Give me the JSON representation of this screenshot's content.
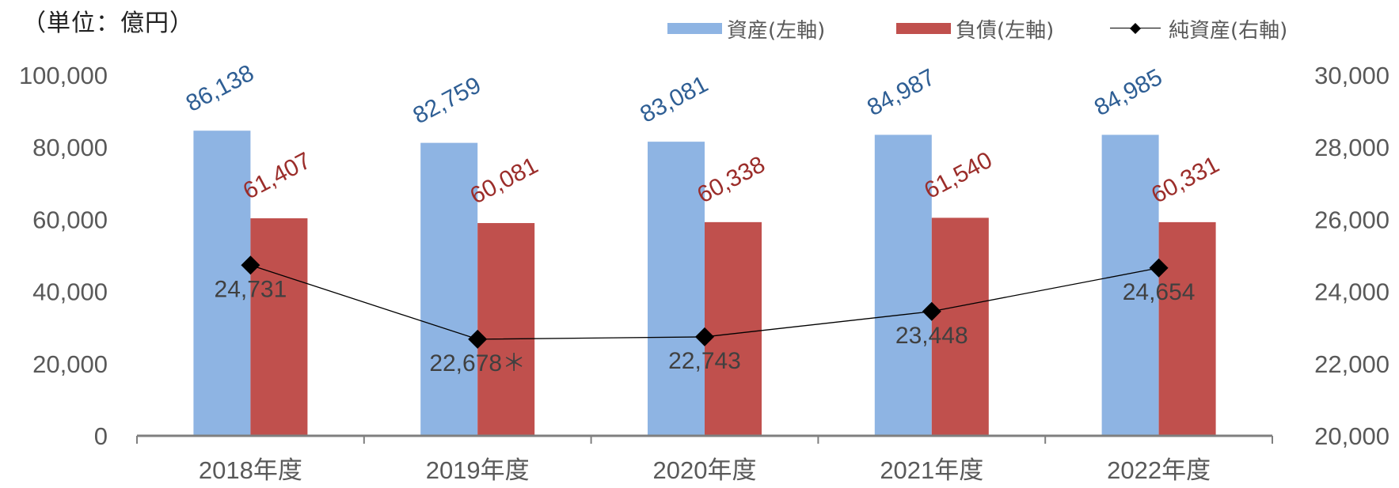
{
  "unit_label": "（単位：億円）",
  "legend": [
    {
      "label": "資産(左軸)",
      "type": "bar",
      "color": "#8EB4E3"
    },
    {
      "label": "負債(左軸)",
      "type": "bar",
      "color": "#C0504D"
    },
    {
      "label": "純資産(右軸)",
      "type": "line-marker",
      "color": "#000000"
    }
  ],
  "colors": {
    "assets_bar": "#8EB4E3",
    "liabilities_bar": "#C0504D",
    "assets_label": "#2E5E94",
    "liabilities_label": "#9B2D2A",
    "net_assets_line": "#000000",
    "net_assets_label": "#404040",
    "axis_text": "#595959",
    "axis_line": "#7F7F7F"
  },
  "chart_data": {
    "type": "bar",
    "title": "",
    "unit": "（単位：億円）",
    "categories": [
      "2018年度",
      "2019年度",
      "2020年度",
      "2021年度",
      "2022年度"
    ],
    "series": [
      {
        "name": "資産(左軸)",
        "type": "bar",
        "axis": "left",
        "values": [
          86138,
          82759,
          83081,
          84987,
          84985
        ],
        "labels": [
          "86,138",
          "82,759",
          "83,081",
          "84,987",
          "84,985"
        ]
      },
      {
        "name": "負債(左軸)",
        "type": "bar",
        "axis": "left",
        "values": [
          61407,
          60081,
          60338,
          61540,
          60331
        ],
        "labels": [
          "61,407",
          "60,081",
          "60,338",
          "61,540",
          "60,331"
        ]
      },
      {
        "name": "純資産(右軸)",
        "type": "line",
        "axis": "right",
        "values": [
          24731,
          22678,
          22743,
          23448,
          24654
        ],
        "labels": [
          "24,731",
          "22,678＊",
          "22,743",
          "23,448",
          "24,654"
        ]
      }
    ],
    "left_axis": {
      "ylim": [
        0,
        100000
      ],
      "ticks": [
        "0",
        "20,000",
        "40,000",
        "60,000",
        "80,000",
        "100,000"
      ]
    },
    "right_axis": {
      "ylim": [
        20000,
        30000
      ],
      "ticks": [
        "20,000",
        "22,000",
        "24,000",
        "26,000",
        "28,000",
        "30,000"
      ]
    },
    "xlabel": "",
    "ylabel": "",
    "grid": false,
    "legend_position": "top-right",
    "annotations": [
      "＊ marker after 2019年度 net assets label"
    ]
  }
}
